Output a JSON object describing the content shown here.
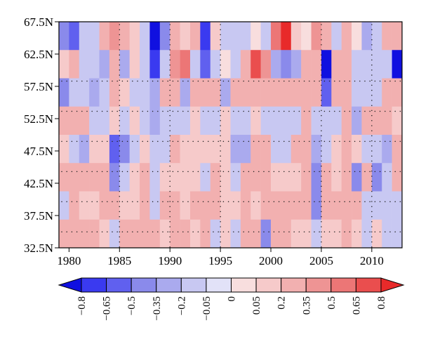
{
  "chart_data": {
    "type": "heatmap",
    "title": "",
    "xlabel": "",
    "ylabel": "",
    "x_start": 1979,
    "x_end": 2012,
    "xlim": [
      1979,
      2013
    ],
    "x_ticks": [
      "1980",
      "1985",
      "1990",
      "1995",
      "2000",
      "2005",
      "2010"
    ],
    "y_rows": [
      "67.5N",
      "62.5N",
      "57.5N",
      "52.5N",
      "47.5N",
      "42.5N",
      "37.5N",
      "32.5N"
    ],
    "y_ticks": [
      "67.5N",
      "62.5N",
      "57.5N",
      "52.5N",
      "47.5N",
      "42.5N",
      "37.5N",
      "32.5N"
    ],
    "ylim_deg": [
      32.5,
      67.5
    ],
    "colorbar": {
      "labels": [
        "−0.8",
        "−0.65",
        "−0.5",
        "−0.35",
        "−0.2",
        "−0.05",
        "0",
        "0.05",
        "0.2",
        "0.35",
        "0.5",
        "0.65",
        "0.8"
      ],
      "levels": [
        -0.8,
        -0.65,
        -0.5,
        -0.35,
        -0.2,
        -0.05,
        0,
        0.05,
        0.2,
        0.35,
        0.5,
        0.65,
        0.8
      ],
      "colors": [
        "#1010e0",
        "#3a3af0",
        "#6060ef",
        "#8a8aeb",
        "#aaaaee",
        "#c8c8f2",
        "#e2e2f8",
        "#f8dede",
        "#f6caca",
        "#f2b0b0",
        "#ee9494",
        "#ec7676",
        "#ea4e4e",
        "#e82a2a"
      ],
      "extend": "both"
    },
    "stippling": "dotted",
    "values": [
      [
        -0.4,
        -0.6,
        -0.2,
        -0.1,
        0.3,
        0.4,
        0.2,
        0.1,
        -0.1,
        -0.9,
        -0.5,
        0.3,
        0.1,
        0.2,
        -0.8,
        0.1,
        -0.2,
        -0.1,
        -0.1,
        0,
        -0.1,
        0.5,
        0.8,
        0.1,
        0,
        0.4,
        0.3,
        -0.1,
        0.2,
        0,
        -0.3,
        -0.1,
        0.2,
        0.2
      ],
      [
        0.1,
        0.3,
        -0.1,
        -0.2,
        -0.3,
        0.2,
        -0.3,
        0.1,
        -0.2,
        -0.7,
        -0.2,
        0.4,
        0.5,
        -0.2,
        -0.6,
        -0.1,
        0,
        -0.1,
        0.3,
        0.7,
        0.4,
        -0.3,
        -0.5,
        -0.3,
        0.2,
        0.3,
        -1.0,
        0.2,
        0.3,
        -0.2,
        -0.1,
        -0.2,
        -0.2,
        -1.0
      ],
      [
        -0.4,
        -0.2,
        -0.1,
        -0.3,
        -0.2,
        0.2,
        0.1,
        -0.1,
        -0.1,
        -0.3,
        0.3,
        0.2,
        -0.3,
        0.2,
        0.2,
        0.3,
        -0.3,
        0.2,
        0.3,
        0.2,
        0.3,
        0.3,
        0.3,
        0.3,
        0.2,
        0.3,
        -0.6,
        0.3,
        0.3,
        -0.2,
        -0.1,
        -0.1,
        0.3,
        0.2
      ],
      [
        0.2,
        0.2,
        0.3,
        -0.1,
        -0.1,
        0.1,
        -0.1,
        0.1,
        -0.1,
        -0.3,
        -0.1,
        -0.1,
        -0.1,
        0.1,
        -0.1,
        -0.1,
        0.1,
        -0.2,
        -0.1,
        0.1,
        -0.1,
        -0.1,
        -0.2,
        -0.2,
        0.3,
        -0.1,
        -0.2,
        -0.1,
        0.2,
        -0.3,
        0.2,
        0.2,
        0.3,
        0.1
      ],
      [
        0.1,
        -0.1,
        -0.3,
        0.1,
        0.1,
        -0.6,
        -0.4,
        -0.1,
        0.1,
        -0.1,
        -0.1,
        0.2,
        0.1,
        0.1,
        0.1,
        0.1,
        0.1,
        -0.3,
        -0.3,
        0.2,
        0.3,
        -0.1,
        -0.1,
        0.2,
        0.2,
        -0.3,
        -0.1,
        0.1,
        0.2,
        0.1,
        -0.1,
        -0.1,
        -0.3,
        0.2
      ],
      [
        0.2,
        0.2,
        0.2,
        0.2,
        0.2,
        -0.5,
        -0.2,
        0.1,
        0.3,
        -0.1,
        0.1,
        0.1,
        0.1,
        0.1,
        -0.1,
        0.2,
        0.1,
        -0.1,
        0.2,
        0.2,
        0.3,
        0.1,
        0.1,
        0.1,
        0.2,
        -0.5,
        0.2,
        0.1,
        0.2,
        -0.4,
        0.2,
        -0.5,
        -0.1,
        0.2
      ],
      [
        -0.2,
        0.2,
        0.1,
        0.1,
        0.2,
        0.3,
        0.1,
        0.1,
        0.2,
        -0.1,
        0.2,
        0.2,
        0.1,
        0.2,
        0.2,
        0.2,
        0.1,
        0.1,
        0.2,
        0.1,
        0.2,
        0.2,
        0.2,
        0.2,
        0.2,
        -0.4,
        0.2,
        0.2,
        0.2,
        0.2,
        -0.2,
        -0.1,
        -0.2,
        -0.1
      ],
      [
        0.2,
        0.3,
        0.2,
        0.2,
        0.1,
        -0.2,
        0.3,
        0.3,
        0.3,
        0.2,
        0.1,
        0.2,
        0.2,
        0.1,
        0.2,
        -0.2,
        0.1,
        -0.1,
        0.2,
        0.2,
        -0.4,
        0.2,
        0.2,
        0.1,
        0.1,
        -0.2,
        0.1,
        0.1,
        0.2,
        0.1,
        -0.1,
        0.1,
        -0.1,
        -0.1
      ]
    ],
    "stipple_columns": [
      "1985",
      "1990",
      "1995",
      "2005",
      "2010"
    ],
    "stipple_rows": [
      "62.5N",
      "57.5N",
      "52.5N",
      "47.5N",
      "42.5N",
      "37.5N"
    ]
  }
}
